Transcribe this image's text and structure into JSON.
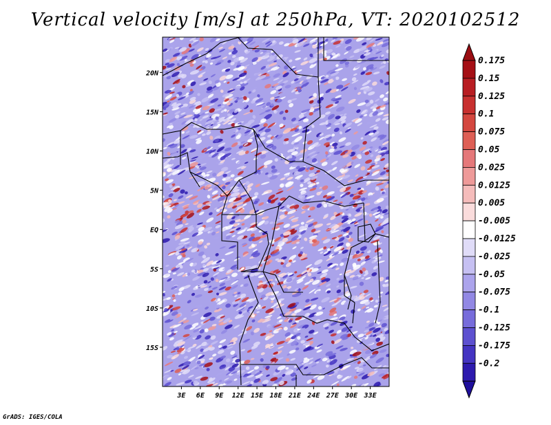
{
  "title": "Vertical velocity [m/s] at 250hPa, VT: 2020102512",
  "footer": "GrADS: IGES/COLA",
  "map": {
    "lon_range": [
      0,
      36
    ],
    "lat_range": [
      -20,
      24.5
    ],
    "lat_ticks": [
      {
        "value": 20,
        "label": "20N"
      },
      {
        "value": 15,
        "label": "15N"
      },
      {
        "value": 10,
        "label": "10N"
      },
      {
        "value": 5,
        "label": "5N"
      },
      {
        "value": 0,
        "label": "EQ"
      },
      {
        "value": -5,
        "label": "5S"
      },
      {
        "value": -10,
        "label": "10S"
      },
      {
        "value": -15,
        "label": "15S"
      }
    ],
    "lon_ticks": [
      {
        "value": 3,
        "label": "3E"
      },
      {
        "value": 6,
        "label": "6E"
      },
      {
        "value": 9,
        "label": "9E"
      },
      {
        "value": 12,
        "label": "12E"
      },
      {
        "value": 15,
        "label": "15E"
      },
      {
        "value": 18,
        "label": "18E"
      },
      {
        "value": 21,
        "label": "21E"
      },
      {
        "value": 24,
        "label": "24E"
      },
      {
        "value": 27,
        "label": "27E"
      },
      {
        "value": 30,
        "label": "30E"
      },
      {
        "value": 33,
        "label": "33E"
      }
    ]
  },
  "colorbar": {
    "levels": [
      {
        "label": "0.175",
        "color": "#a50f15"
      },
      {
        "label": "0.15",
        "color": "#b81d22"
      },
      {
        "label": "0.125",
        "color": "#c8302f"
      },
      {
        "label": "0.1",
        "color": "#d4473f"
      },
      {
        "label": "0.075",
        "color": "#de5f55"
      },
      {
        "label": "0.05",
        "color": "#e5787a"
      },
      {
        "label": "0.025",
        "color": "#ee9a99"
      },
      {
        "label": "0.0125",
        "color": "#f5bcbb"
      },
      {
        "label": "0.005",
        "color": "#fadcdc"
      },
      {
        "label": "-0.005",
        "color": "#ffffff"
      },
      {
        "label": "-0.0125",
        "color": "#e0dcf8"
      },
      {
        "label": "-0.025",
        "color": "#c6c0f2"
      },
      {
        "label": "-0.05",
        "color": "#aca4ec"
      },
      {
        "label": "-0.075",
        "color": "#9288e4"
      },
      {
        "label": "-0.1",
        "color": "#776cdb"
      },
      {
        "label": "-0.125",
        "color": "#5d50d0"
      },
      {
        "label": "-0.175",
        "color": "#4434c2"
      },
      {
        "label": "-0.2",
        "color": "#2d1aae"
      }
    ],
    "top_color": "#9a0d12",
    "bottom_color": "#1f0f9c"
  }
}
